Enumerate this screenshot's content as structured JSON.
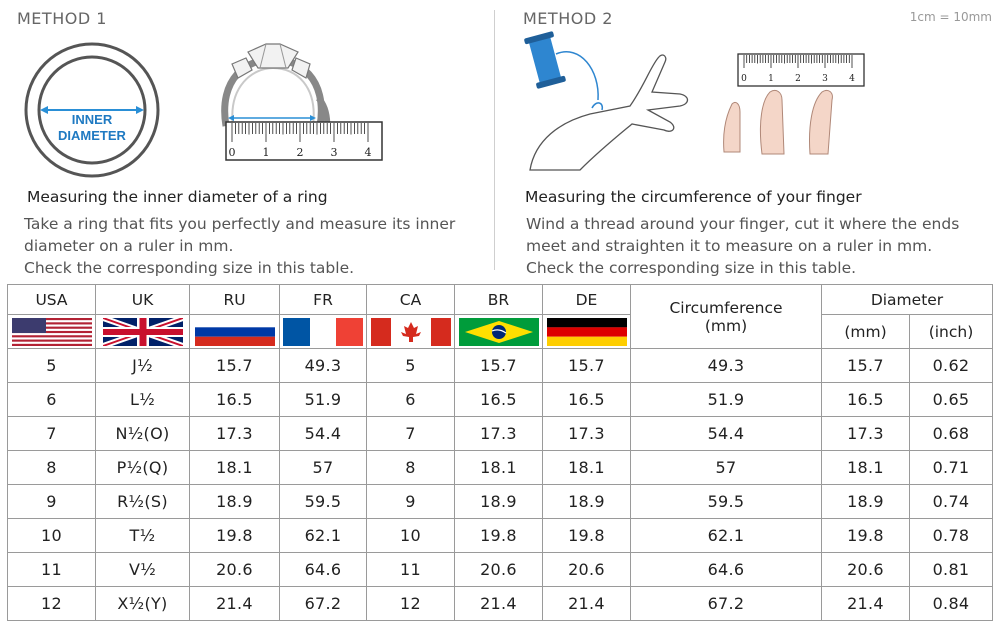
{
  "method1": {
    "label": "METHOD 1",
    "ring_label_line1": "INNER",
    "ring_label_line2": "DIAMETER",
    "ruler_numbers": [
      "0",
      "1",
      "2",
      "3",
      "4"
    ],
    "caption_title": "Measuring the inner diameter of a ring",
    "caption_lines": [
      "Take a ring that fits you perfectly and measure its inner",
      "diameter on a ruler in mm.",
      "Check the corresponding size in this table."
    ]
  },
  "method2": {
    "label": "METHOD 2",
    "scale_note": "1cm = 10mm",
    "ruler_numbers": [
      "0",
      "1",
      "2",
      "3",
      "4"
    ],
    "caption_title": "Measuring the circumference of your finger",
    "caption_lines": [
      "Wind a thread around your finger, cut it where the ends",
      "meet and straighten it to measure on a ruler in mm.",
      "Check the corresponding size in this table."
    ]
  },
  "table": {
    "headers": {
      "usa": "USA",
      "uk": "UK",
      "ru": "RU",
      "fr": "FR",
      "ca": "CA",
      "br": "BR",
      "de": "DE",
      "circumference": "Circumference",
      "circumference_unit": "(mm)",
      "diameter": "Diameter",
      "diameter_mm": "(mm)",
      "diameter_inch": "(inch)"
    },
    "flags": [
      "usa-flag",
      "uk-flag",
      "russia-flag",
      "france-flag",
      "canada-flag",
      "brazil-flag",
      "germany-flag"
    ],
    "rows": [
      [
        "5",
        "J½",
        "15.7",
        "49.3",
        "5",
        "15.7",
        "15.7",
        "49.3",
        "15.7",
        "0.62"
      ],
      [
        "6",
        "L½",
        "16.5",
        "51.9",
        "6",
        "16.5",
        "16.5",
        "51.9",
        "16.5",
        "0.65"
      ],
      [
        "7",
        "N½(O)",
        "17.3",
        "54.4",
        "7",
        "17.3",
        "17.3",
        "54.4",
        "17.3",
        "0.68"
      ],
      [
        "8",
        "P½(Q)",
        "18.1",
        "57",
        "8",
        "18.1",
        "18.1",
        "57",
        "18.1",
        "0.71"
      ],
      [
        "9",
        "R½(S)",
        "18.9",
        "59.5",
        "9",
        "18.9",
        "18.9",
        "59.5",
        "18.9",
        "0.74"
      ],
      [
        "10",
        "T½",
        "19.8",
        "62.1",
        "10",
        "19.8",
        "19.8",
        "62.1",
        "19.8",
        "0.78"
      ],
      [
        "11",
        "V½",
        "20.6",
        "64.6",
        "11",
        "20.6",
        "20.6",
        "64.6",
        "20.6",
        "0.81"
      ],
      [
        "12",
        "X½(Y)",
        "21.4",
        "67.2",
        "12",
        "21.4",
        "21.4",
        "67.2",
        "21.4",
        "0.84"
      ]
    ]
  },
  "colors": {
    "arrow": "#2a8fd6",
    "label_blue": "#1f7ac2",
    "spool": "#2e86d0",
    "border": "#9a9a9a"
  }
}
